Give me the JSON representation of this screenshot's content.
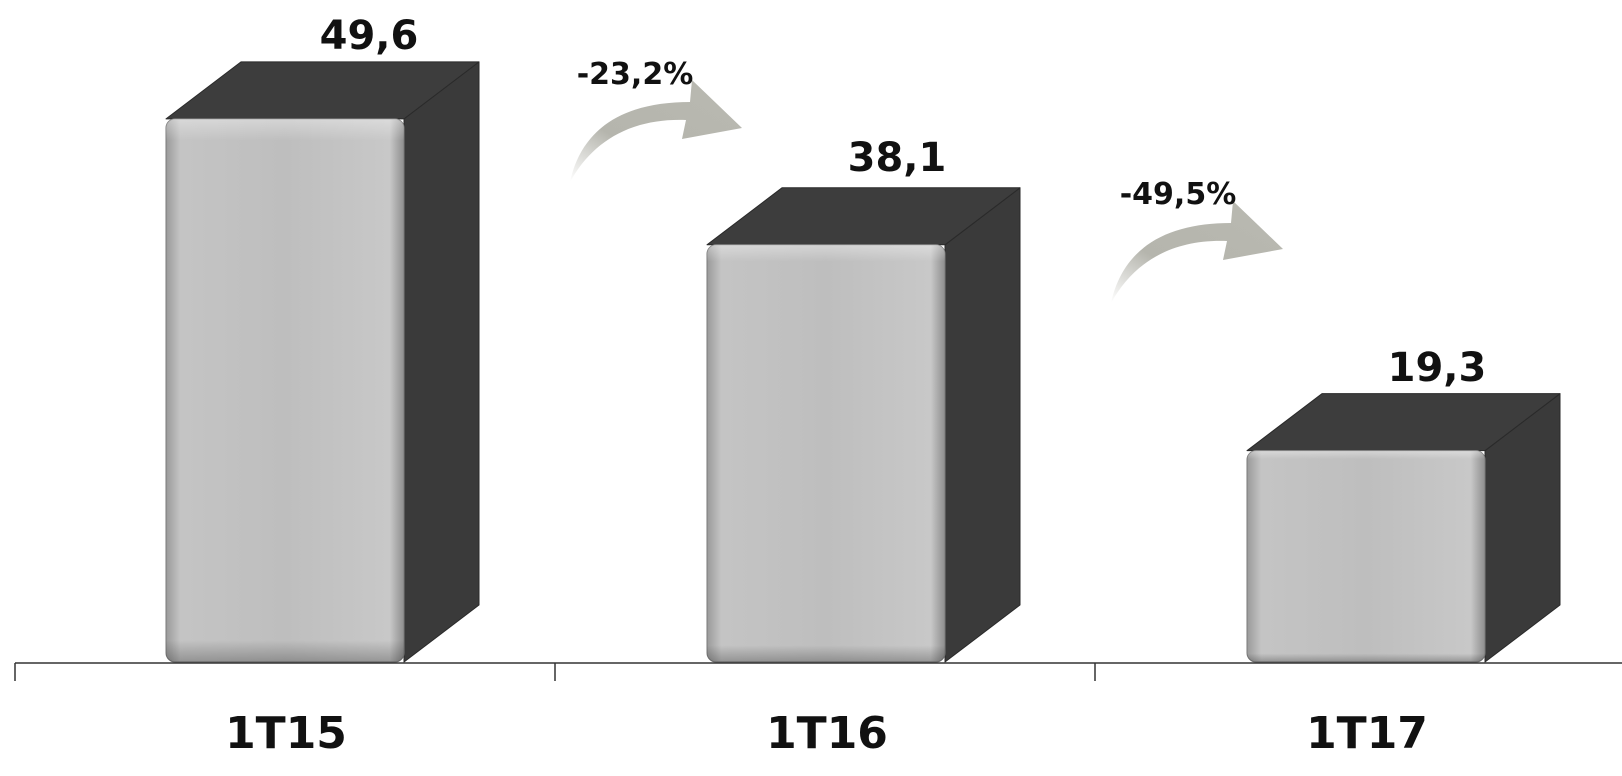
{
  "chart_data": {
    "type": "bar",
    "categories": [
      "1T15",
      "1T16",
      "1T17"
    ],
    "values": [
      49.6,
      38.1,
      19.3
    ],
    "value_labels": [
      "49,6",
      "38,1",
      "19,3"
    ],
    "changes": [
      "-23,2%",
      "-49,5%"
    ],
    "title": "",
    "xlabel": "",
    "ylabel": "",
    "grid": false,
    "legend": "none",
    "colors": {
      "bar_front": "#bdbdbd",
      "bar_side": "#3a3a3a",
      "bar_top": "#3d3d3d",
      "arrow": "#b8b8b0",
      "axis": "#333333",
      "text": "#111111"
    }
  }
}
